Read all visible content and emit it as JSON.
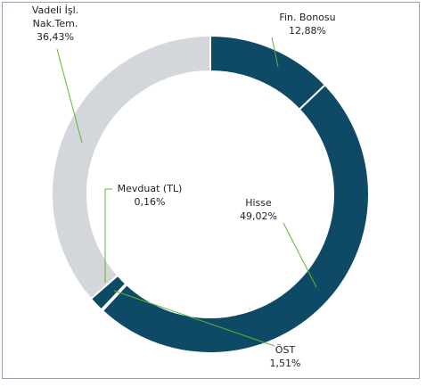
{
  "chart_data": {
    "type": "donut",
    "categories": [
      "Fin. Bonosu",
      "Hisse",
      "Mevduat (TL)",
      "ÖST",
      "Vadeli İşl. Nak.Tem."
    ],
    "values": [
      12.88,
      49.02,
      0.16,
      1.51,
      36.43
    ],
    "value_labels": [
      "12,88%",
      "49,02%",
      "0,16%",
      "1,51%",
      "36,43%"
    ],
    "colors": [
      "#0e4a66",
      "#0e4a66",
      "#0e4a66",
      "#0e4a66",
      "#d3d6db"
    ]
  }
}
